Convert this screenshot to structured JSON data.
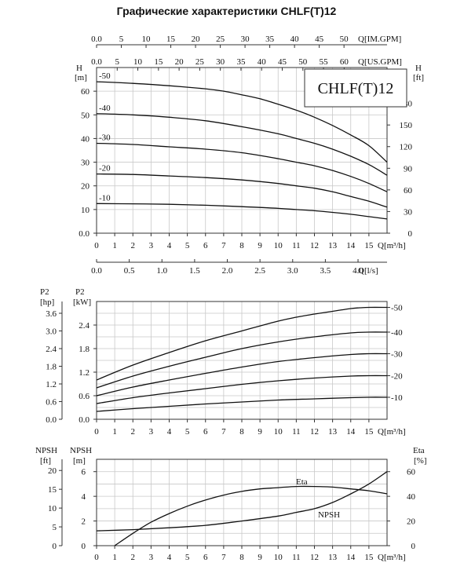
{
  "title": "Графические характеристики CHLF(T)12",
  "chart_data": [
    {
      "type": "line",
      "name_box": "CHLF(T)12",
      "x_unit_label": "Q[m³/h]",
      "x_ticks": [
        0,
        1,
        2,
        3,
        4,
        5,
        6,
        7,
        8,
        9,
        10,
        11,
        12,
        13,
        14,
        15
      ],
      "xlim": [
        0,
        16
      ],
      "top_axes": [
        {
          "label": "Q[IM.GPM]",
          "ticks": [
            "0.0",
            "5",
            "10",
            "15",
            "20",
            "25",
            "30",
            "35",
            "40",
            "45",
            "50"
          ],
          "max": 58.7
        },
        {
          "label": "Q[US.GPM]",
          "ticks": [
            "0.0",
            "5",
            "10",
            "15",
            "20",
            "25",
            "30",
            "35",
            "40",
            "45",
            "50",
            "55",
            "60"
          ],
          "max": 70.4
        }
      ],
      "left_axis": {
        "label": "H",
        "unit": "[m]",
        "ticks": [
          "0.0",
          "10",
          "20",
          "30",
          "40",
          "50",
          "60"
        ],
        "ylim": [
          0,
          70
        ]
      },
      "right_axis": {
        "label": "H",
        "unit": "[ft]",
        "ticks": [
          "0",
          "30",
          "60",
          "90",
          "120",
          "150",
          "180"
        ]
      },
      "series": [
        {
          "name": "-50",
          "x": [
            0,
            2,
            4,
            6,
            7,
            8,
            9,
            10,
            11,
            12,
            13,
            14,
            15,
            16
          ],
          "y": [
            64,
            63.3,
            62.3,
            61,
            60,
            58.5,
            56.8,
            54.5,
            52,
            49,
            45.5,
            41.5,
            37,
            30
          ]
        },
        {
          "name": "-40",
          "x": [
            0,
            2,
            4,
            6,
            8,
            10,
            11,
            12,
            13,
            14,
            15,
            16
          ],
          "y": [
            50.5,
            50,
            49,
            47.5,
            45,
            42,
            40,
            38,
            35.5,
            32.5,
            29,
            24.5
          ]
        },
        {
          "name": "-30",
          "x": [
            0,
            2,
            4,
            6,
            8,
            10,
            11,
            12,
            13,
            14,
            15,
            16
          ],
          "y": [
            38,
            37.5,
            36.5,
            35.5,
            34,
            31.5,
            30,
            28.5,
            26.5,
            24,
            21,
            17.5
          ]
        },
        {
          "name": "-20",
          "x": [
            0,
            2,
            4,
            6,
            8,
            10,
            11,
            12,
            13,
            14,
            15,
            16
          ],
          "y": [
            25,
            24.8,
            24.2,
            23.5,
            22.5,
            21,
            20,
            19,
            17.5,
            15.5,
            13.5,
            11
          ]
        },
        {
          "name": "-10",
          "x": [
            0,
            2,
            4,
            6,
            8,
            10,
            11,
            12,
            13,
            14,
            15,
            16
          ],
          "y": [
            12.5,
            12.4,
            12.2,
            11.8,
            11.2,
            10.5,
            10,
            9.5,
            8.8,
            8,
            7,
            6
          ]
        }
      ],
      "bottom_axis": {
        "label": "Q[l/s]",
        "ticks": [
          "0.0",
          "0.5",
          "1.0",
          "1.5",
          "2.0",
          "2.5",
          "3.0",
          "3.5",
          "4.0"
        ],
        "max": 4.444
      }
    },
    {
      "type": "line",
      "x_unit_label": "Q[m³/h]",
      "x_ticks": [
        0,
        1,
        2,
        3,
        4,
        5,
        6,
        7,
        8,
        9,
        10,
        11,
        12,
        13,
        14,
        15
      ],
      "xlim": [
        0,
        16
      ],
      "left_axis_outer": {
        "label": "P2",
        "unit": "[hp]",
        "ticks": [
          "0.0",
          "0.6",
          "1.2",
          "1.8",
          "2.4",
          "3.0",
          "3.6"
        ],
        "max": 4.0
      },
      "left_axis": {
        "label": "P2",
        "unit": "[kW]",
        "ticks": [
          "0.0",
          "0.6",
          "1.2",
          "1.8",
          "2.4"
        ],
        "ylim": [
          0,
          3.0
        ]
      },
      "series": [
        {
          "name": "-50",
          "x": [
            0,
            2,
            4,
            6,
            8,
            10,
            11,
            12,
            13,
            14,
            14.5,
            15,
            16
          ],
          "y": [
            1.0,
            1.38,
            1.7,
            2.0,
            2.25,
            2.5,
            2.6,
            2.68,
            2.75,
            2.82,
            2.84,
            2.85,
            2.85
          ]
        },
        {
          "name": "-40",
          "x": [
            0,
            2,
            4,
            6,
            8,
            10,
            12,
            14,
            15,
            16
          ],
          "y": [
            0.8,
            1.1,
            1.35,
            1.58,
            1.8,
            1.97,
            2.1,
            2.2,
            2.22,
            2.22
          ]
        },
        {
          "name": "-30",
          "x": [
            0,
            2,
            4,
            6,
            8,
            10,
            12,
            14,
            15,
            16
          ],
          "y": [
            0.6,
            0.82,
            1.0,
            1.17,
            1.33,
            1.47,
            1.57,
            1.65,
            1.67,
            1.67
          ]
        },
        {
          "name": "-20",
          "x": [
            0,
            2,
            4,
            6,
            8,
            10,
            12,
            14,
            15,
            16
          ],
          "y": [
            0.4,
            0.55,
            0.67,
            0.78,
            0.89,
            0.98,
            1.05,
            1.1,
            1.11,
            1.11
          ]
        },
        {
          "name": "-10",
          "x": [
            0,
            2,
            4,
            6,
            8,
            10,
            12,
            14,
            15,
            16
          ],
          "y": [
            0.2,
            0.27,
            0.33,
            0.39,
            0.44,
            0.49,
            0.52,
            0.55,
            0.56,
            0.56
          ]
        }
      ],
      "series_labels": [
        "-50",
        "-40",
        "-30",
        "-20",
        "-10"
      ]
    },
    {
      "type": "line",
      "x_unit_label": "Q[m³/h]",
      "x_ticks": [
        0,
        1,
        2,
        3,
        4,
        5,
        6,
        7,
        8,
        9,
        10,
        11,
        12,
        13,
        14,
        15
      ],
      "xlim": [
        0,
        16
      ],
      "left_axis_outer": {
        "label": "NPSH",
        "unit": "[ft]",
        "ticks": [
          "0",
          "5",
          "10",
          "15",
          "20"
        ],
        "max": 22.97
      },
      "left_axis": {
        "label": "NPSH",
        "unit": "[m]",
        "ticks": [
          "0",
          "2",
          "4",
          "6"
        ],
        "ylim": [
          0,
          7
        ]
      },
      "right_axis": {
        "label": "Eta",
        "unit": "[%]",
        "ticks": [
          "0",
          "20",
          "40",
          "60"
        ],
        "ylim": [
          0,
          70
        ]
      },
      "series": [
        {
          "name": "Eta",
          "axis": "right",
          "x": [
            1,
            2,
            3,
            4,
            5,
            6,
            7,
            8,
            9,
            10,
            11,
            12,
            13,
            14,
            15,
            16
          ],
          "y": [
            0,
            10,
            19,
            26,
            32,
            37,
            41,
            44,
            46,
            47,
            48,
            48,
            47.5,
            46,
            44.5,
            42
          ]
        },
        {
          "name": "NPSH",
          "axis": "left",
          "x": [
            0,
            2,
            4,
            6,
            8,
            10,
            11,
            12,
            13,
            14,
            15,
            16
          ],
          "y": [
            1.2,
            1.3,
            1.45,
            1.65,
            2.0,
            2.4,
            2.7,
            3.0,
            3.5,
            4.2,
            5.0,
            6.0
          ]
        }
      ]
    }
  ]
}
